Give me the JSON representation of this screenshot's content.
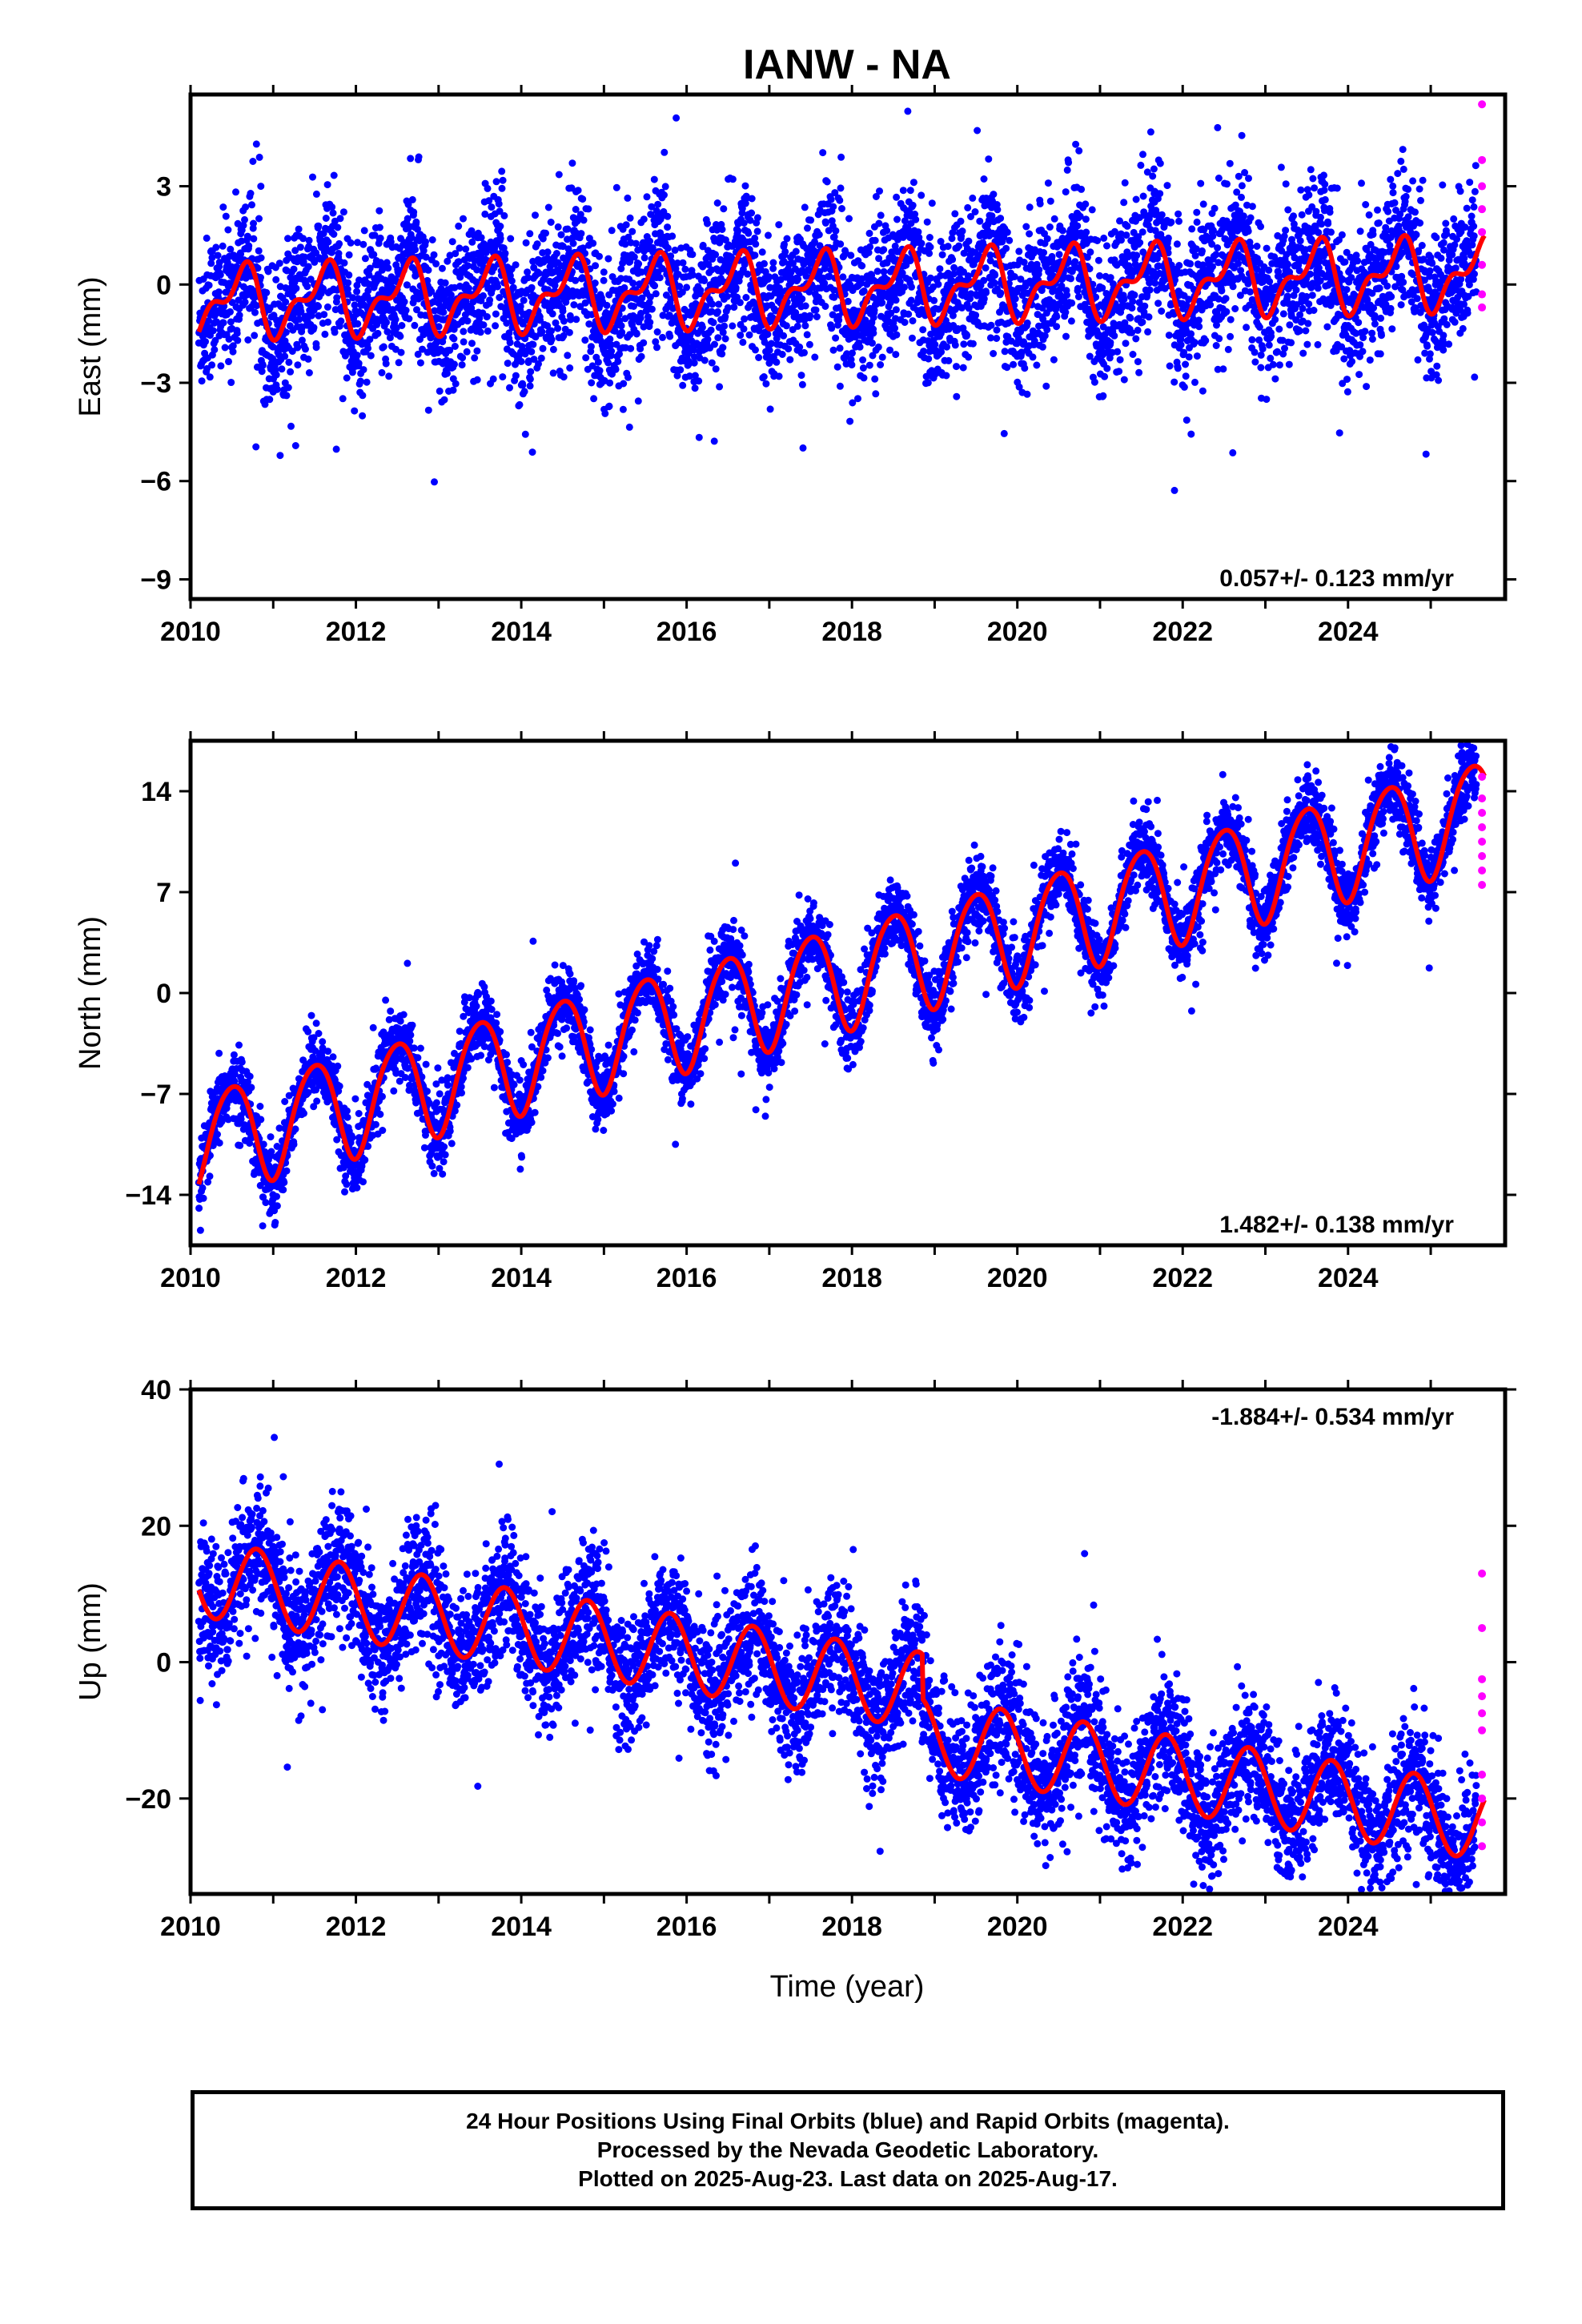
{
  "title": "IANW - NA",
  "chart_data": [
    {
      "type": "scatter",
      "panel": "east",
      "ylabel": "East (mm)",
      "xlim": [
        2010.0,
        2025.9
      ],
      "ylim": [
        -9.6,
        5.8
      ],
      "xticks": [
        2010,
        2012,
        2014,
        2016,
        2018,
        2020,
        2022,
        2024
      ],
      "yticks": [
        -9,
        -6,
        -3,
        0,
        3
      ],
      "rate_label": "0.057+/- 0.123 mm/yr",
      "rate_position": "bottom-right",
      "trend": {
        "start": 2010.1,
        "end": 2025.65,
        "offset": -0.55,
        "slope": 0.057,
        "annual_amp": 0.9,
        "annual_phase": 0.35,
        "semiannual_amp": 0.5,
        "semiannual_phase": 0.6
      },
      "scatter_sd": 1.1,
      "series": [
        {
          "name": "Final Orbits",
          "color": "#0000ff",
          "x_range": [
            2010.1,
            2025.55
          ],
          "approx_points": 5500
        },
        {
          "name": "Rapid Orbits",
          "color": "#ff00ff",
          "points": [
            [
              2025.62,
              5.5
            ],
            [
              2025.62,
              3.8
            ],
            [
              2025.62,
              3.0
            ],
            [
              2025.62,
              2.3
            ],
            [
              2025.62,
              1.6
            ],
            [
              2025.62,
              0.6
            ],
            [
              2025.62,
              -0.3
            ],
            [
              2025.62,
              -0.7
            ]
          ]
        },
        {
          "name": "Model",
          "color": "#ff0000"
        }
      ]
    },
    {
      "type": "scatter",
      "panel": "north",
      "ylabel": "North (mm)",
      "xlim": [
        2010.0,
        2025.9
      ],
      "ylim": [
        -17.5,
        17.5
      ],
      "xticks": [
        2010,
        2012,
        2014,
        2016,
        2018,
        2020,
        2022,
        2024
      ],
      "yticks": [
        -14,
        -7,
        0,
        7,
        14
      ],
      "rate_label": "1.482+/- 0.138 mm/yr",
      "rate_position": "bottom-right",
      "trend": {
        "start": 2010.1,
        "end": 2025.65,
        "offset": -10.5,
        "slope": 1.482,
        "annual_amp": 3.6,
        "annual_phase": 0.25,
        "semiannual_amp": 0.4,
        "semiannual_phase": 0.1
      },
      "scatter_sd": 1.2,
      "series": [
        {
          "name": "Final Orbits",
          "color": "#0000ff",
          "x_range": [
            2010.1,
            2025.55
          ],
          "approx_points": 5500
        },
        {
          "name": "Rapid Orbits",
          "color": "#ff00ff",
          "points": [
            [
              2025.62,
              15.0
            ],
            [
              2025.62,
              13.5
            ],
            [
              2025.62,
              12.5
            ],
            [
              2025.62,
              11.5
            ],
            [
              2025.62,
              10.5
            ],
            [
              2025.62,
              9.5
            ],
            [
              2025.62,
              8.5
            ],
            [
              2025.62,
              7.5
            ]
          ]
        },
        {
          "name": "Model",
          "color": "#ff0000"
        }
      ]
    },
    {
      "type": "scatter",
      "panel": "up",
      "ylabel": "Up (mm)",
      "xlim": [
        2010.0,
        2025.9
      ],
      "ylim": [
        -34,
        40
      ],
      "xticks": [
        2010,
        2012,
        2014,
        2016,
        2018,
        2020,
        2022,
        2024
      ],
      "yticks": [
        -20,
        0,
        20,
        40
      ],
      "rate_label": "-1.884+/- 0.534 mm/yr",
      "rate_position": "top-right",
      "trend": {
        "start": 2010.1,
        "end": 2025.65,
        "offset": 12.5,
        "slope": -1.884,
        "annual_amp": 5.6,
        "annual_phase": 0.55,
        "semiannual_amp": 0.0,
        "semiannual_phase": 0.0,
        "step_at": 2018.85,
        "step": -6.5
      },
      "scatter_sd": 4.5,
      "series": [
        {
          "name": "Final Orbits",
          "color": "#0000ff",
          "x_range": [
            2010.1,
            2025.55
          ],
          "approx_points": 5500
        },
        {
          "name": "Rapid Orbits",
          "color": "#ff00ff",
          "points": [
            [
              2025.62,
              13.0
            ],
            [
              2025.62,
              5.0
            ],
            [
              2025.62,
              -2.5
            ],
            [
              2025.62,
              -5.0
            ],
            [
              2025.62,
              -7.5
            ],
            [
              2025.62,
              -10.0
            ],
            [
              2025.62,
              -16.5
            ],
            [
              2025.62,
              -20.0
            ],
            [
              2025.62,
              -23.5
            ],
            [
              2025.62,
              -27.0
            ]
          ]
        },
        {
          "name": "Model",
          "color": "#ff0000"
        }
      ]
    }
  ],
  "xlabel": "Time (year)",
  "footer": {
    "line1": "24 Hour Positions Using Final Orbits (blue) and Rapid Orbits (magenta).",
    "line2": "Processed by the Nevada Geodetic Laboratory.",
    "line3": "Plotted on 2025-Aug-23. Last data on 2025-Aug-17."
  }
}
